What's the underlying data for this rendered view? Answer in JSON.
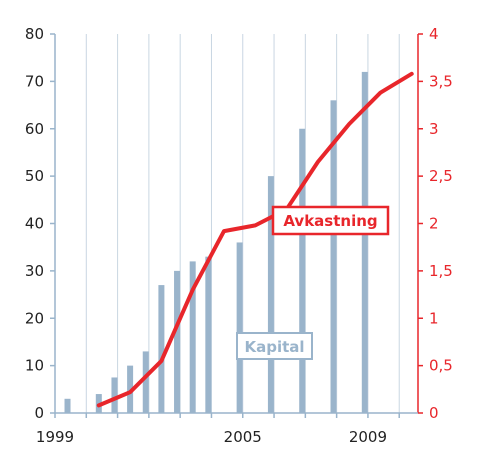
{
  "chart_data": {
    "type": "bar+line",
    "x_ticks": [
      "1999",
      "2005",
      "2009"
    ],
    "left_axis": {
      "ticks": [
        "0",
        "10",
        "20",
        "30",
        "40",
        "50",
        "60",
        "70",
        "80"
      ],
      "ylim": [
        0,
        80
      ]
    },
    "right_axis": {
      "ticks": [
        "0",
        "0,5",
        "1",
        "1,5",
        "2",
        "2,5",
        "3",
        "3,5",
        "4"
      ],
      "ylim": [
        0,
        4
      ]
    },
    "grid": "vertical",
    "bar_series": {
      "name": "Kapital",
      "color": "#9ab4cb",
      "points": [
        {
          "x": 1999.4,
          "y": 3
        },
        {
          "x": 2000.4,
          "y": 4
        },
        {
          "x": 2000.9,
          "y": 7.5
        },
        {
          "x": 2001.4,
          "y": 10
        },
        {
          "x": 2001.9,
          "y": 13
        },
        {
          "x": 2002.4,
          "y": 27
        },
        {
          "x": 2002.9,
          "y": 30
        },
        {
          "x": 2003.4,
          "y": 32
        },
        {
          "x": 2003.9,
          "y": 33
        },
        {
          "x": 2004.9,
          "y": 36
        },
        {
          "x": 2005.9,
          "y": 50
        },
        {
          "x": 2006.9,
          "y": 60
        },
        {
          "x": 2007.9,
          "y": 66
        },
        {
          "x": 2008.9,
          "y": 72
        }
      ]
    },
    "line_series": {
      "name": "Avkastning",
      "color": "#e8262b",
      "points": [
        {
          "x": 2000.4,
          "y": 0.08
        },
        {
          "x": 2001.4,
          "y": 0.22
        },
        {
          "x": 2002.4,
          "y": 0.55
        },
        {
          "x": 2003.4,
          "y": 1.3
        },
        {
          "x": 2004.4,
          "y": 1.92
        },
        {
          "x": 2005.4,
          "y": 1.98
        },
        {
          "x": 2006.4,
          "y": 2.15
        },
        {
          "x": 2007.4,
          "y": 2.65
        },
        {
          "x": 2008.4,
          "y": 3.05
        },
        {
          "x": 2009.4,
          "y": 3.38
        },
        {
          "x": 2010.4,
          "y": 3.58
        }
      ]
    },
    "x_range": [
      1999,
      2010.6
    ]
  }
}
